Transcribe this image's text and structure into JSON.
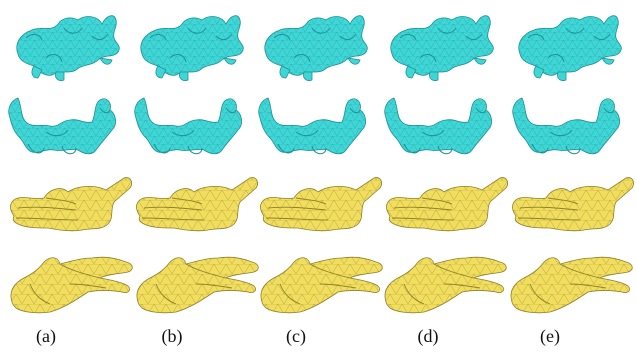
{
  "figure": {
    "panel_labels": [
      "(a)",
      "(b)",
      "(c)",
      "(d)",
      "(e)"
    ],
    "colors": {
      "dragon_fill": "#3fd6d6",
      "dragon_edge": "#1f8f96",
      "hand_fill": "#f2de5e",
      "hand_edge": "#8f7f2a"
    },
    "rows": [
      {
        "object": "dragon",
        "view": "top"
      },
      {
        "object": "dragon",
        "view": "side"
      },
      {
        "object": "hand",
        "view": "top"
      },
      {
        "object": "hand",
        "view": "side"
      }
    ]
  }
}
